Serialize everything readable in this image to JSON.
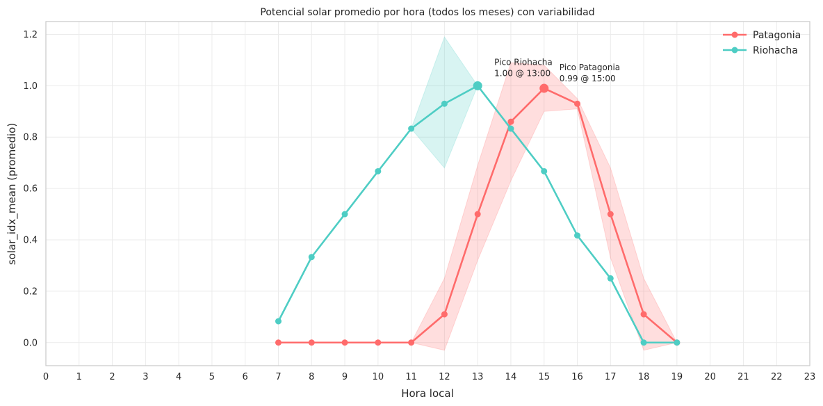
{
  "chart_data": {
    "type": "line",
    "title": "Potencial solar promedio por hora (todos los meses) con variabilidad",
    "xlabel": "Hora local",
    "ylabel": "solar_idx_mean (promedio)",
    "xlim": [
      0,
      23
    ],
    "ylim": [
      -0.09,
      1.25
    ],
    "xticks": [
      0,
      1,
      2,
      3,
      4,
      5,
      6,
      7,
      8,
      9,
      10,
      11,
      12,
      13,
      14,
      15,
      16,
      17,
      18,
      19,
      20,
      21,
      22,
      23
    ],
    "xtick_labels": [
      "0",
      "1",
      "2",
      "3",
      "4",
      "5",
      "6",
      "7",
      "8",
      "9",
      "10",
      "11",
      "12",
      "13",
      "14",
      "15",
      "16",
      "17",
      "18",
      "19",
      "20",
      "21",
      "22",
      "23"
    ],
    "yticks": [
      0.0,
      0.2,
      0.4,
      0.6,
      0.8,
      1.0,
      1.2
    ],
    "ytick_labels": [
      "0.0",
      "0.2",
      "0.4",
      "0.6",
      "0.8",
      "1.0",
      "1.2"
    ],
    "grid": true,
    "legend_position": "top-right",
    "series": [
      {
        "name": "Patagonia",
        "color": "#ff6b6b",
        "x": [
          7,
          8,
          9,
          10,
          11,
          12,
          13,
          14,
          15,
          16,
          17,
          18,
          19
        ],
        "y": [
          0.0,
          0.0,
          0.0,
          0.0,
          0.0,
          0.11,
          0.5,
          0.86,
          0.99,
          0.93,
          0.5,
          0.11,
          0.0
        ],
        "band_x": [
          11,
          12,
          13,
          14,
          15,
          16,
          17,
          18,
          19
        ],
        "band_lower": [
          0.0,
          -0.03,
          0.32,
          0.63,
          0.9,
          0.91,
          0.33,
          -0.03,
          0.0
        ],
        "band_upper": [
          0.0,
          0.25,
          0.69,
          1.09,
          1.08,
          0.95,
          0.68,
          0.25,
          0.0
        ]
      },
      {
        "name": "Riohacha",
        "color": "#4ecdc4",
        "x": [
          7,
          8,
          9,
          10,
          11,
          12,
          13,
          14,
          15,
          16,
          17,
          18,
          19
        ],
        "y": [
          0.083,
          0.333,
          0.5,
          0.667,
          0.833,
          0.93,
          1.0,
          0.833,
          0.667,
          0.417,
          0.25,
          0.0,
          0.0
        ],
        "band_x": [
          11,
          12,
          13
        ],
        "band_lower": [
          0.833,
          0.68,
          1.0
        ],
        "band_upper": [
          0.833,
          1.19,
          1.0
        ]
      }
    ],
    "peaks": [
      {
        "series": "Riohacha",
        "x": 13,
        "y": 1.0,
        "line1": "Pico Riohacha",
        "line2": "1.00 @ 13:00"
      },
      {
        "series": "Patagonia",
        "x": 15,
        "y": 0.99,
        "line1": "Pico Patagonia",
        "line2": "0.99 @ 15:00"
      }
    ]
  }
}
